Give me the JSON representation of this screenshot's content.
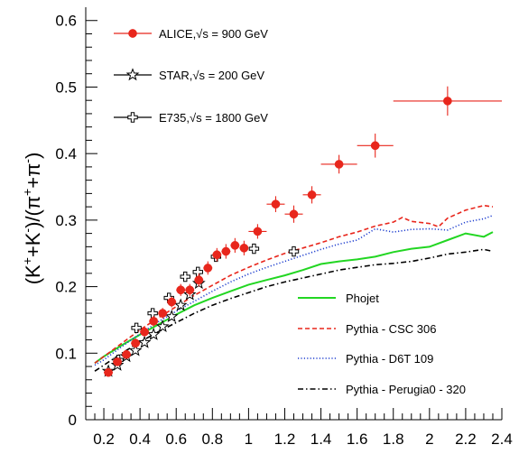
{
  "chart_data": {
    "type": "scatter",
    "title": "",
    "xlabel": "",
    "ylabel_parts": [
      "(K",
      "+",
      "+K",
      "-",
      ")/(π",
      "+",
      "+π",
      "-",
      ")"
    ],
    "xlim": [
      0.1,
      2.4
    ],
    "ylim": [
      0,
      0.62
    ],
    "x_ticks": [
      0.2,
      0.4,
      0.6,
      0.8,
      1,
      1.2,
      1.4,
      1.6,
      1.8,
      2,
      2.2,
      2.4
    ],
    "x_tick_labels": [
      "0.2",
      "0.4",
      "0.6",
      "0.8",
      "1",
      "1.2",
      "1.4",
      "1.6",
      "1.8",
      "2",
      "2.2",
      "2.4"
    ],
    "y_ticks": [
      0,
      0.1,
      0.2,
      0.3,
      0.4,
      0.5,
      0.6
    ],
    "y_tick_labels": [
      "0",
      "0.1",
      "0.2",
      "0.3",
      "0.4",
      "0.5",
      "0.6"
    ],
    "legend_placement": "top-left",
    "grid": false,
    "series": [
      {
        "name": "ALICE,√s = 900 GeV",
        "marker": "filled-circle",
        "color": "#e8261c",
        "points": [
          {
            "x": 0.225,
            "y": 0.071,
            "xerr": 0.025,
            "yerr": 0.006
          },
          {
            "x": 0.275,
            "y": 0.087,
            "xerr": 0.025,
            "yerr": 0.006
          },
          {
            "x": 0.325,
            "y": 0.098,
            "xerr": 0.025,
            "yerr": 0.006
          },
          {
            "x": 0.375,
            "y": 0.115,
            "xerr": 0.025,
            "yerr": 0.007
          },
          {
            "x": 0.425,
            "y": 0.132,
            "xerr": 0.025,
            "yerr": 0.007
          },
          {
            "x": 0.475,
            "y": 0.148,
            "xerr": 0.025,
            "yerr": 0.008
          },
          {
            "x": 0.525,
            "y": 0.16,
            "xerr": 0.025,
            "yerr": 0.008
          },
          {
            "x": 0.575,
            "y": 0.177,
            "xerr": 0.025,
            "yerr": 0.008
          },
          {
            "x": 0.625,
            "y": 0.195,
            "xerr": 0.025,
            "yerr": 0.009
          },
          {
            "x": 0.675,
            "y": 0.195,
            "xerr": 0.025,
            "yerr": 0.009
          },
          {
            "x": 0.725,
            "y": 0.21,
            "xerr": 0.025,
            "yerr": 0.01
          },
          {
            "x": 0.775,
            "y": 0.228,
            "xerr": 0.025,
            "yerr": 0.01
          },
          {
            "x": 0.825,
            "y": 0.248,
            "xerr": 0.025,
            "yerr": 0.01
          },
          {
            "x": 0.875,
            "y": 0.253,
            "xerr": 0.025,
            "yerr": 0.011
          },
          {
            "x": 0.925,
            "y": 0.262,
            "xerr": 0.025,
            "yerr": 0.011
          },
          {
            "x": 0.975,
            "y": 0.258,
            "xerr": 0.025,
            "yerr": 0.011
          },
          {
            "x": 1.05,
            "y": 0.283,
            "xerr": 0.05,
            "yerr": 0.011
          },
          {
            "x": 1.15,
            "y": 0.324,
            "xerr": 0.05,
            "yerr": 0.012
          },
          {
            "x": 1.25,
            "y": 0.309,
            "xerr": 0.05,
            "yerr": 0.013
          },
          {
            "x": 1.35,
            "y": 0.338,
            "xerr": 0.05,
            "yerr": 0.013
          },
          {
            "x": 1.5,
            "y": 0.384,
            "xerr": 0.1,
            "yerr": 0.014
          },
          {
            "x": 1.7,
            "y": 0.412,
            "xerr": 0.1,
            "yerr": 0.018
          },
          {
            "x": 2.1,
            "y": 0.479,
            "xerr": 0.3,
            "yerr": 0.022
          }
        ]
      },
      {
        "name": "STAR,√s = 200 GeV",
        "marker": "open-star",
        "color": "#000000",
        "points": [
          {
            "x": 0.225,
            "y": 0.073
          },
          {
            "x": 0.275,
            "y": 0.082
          },
          {
            "x": 0.325,
            "y": 0.095
          },
          {
            "x": 0.375,
            "y": 0.104
          },
          {
            "x": 0.425,
            "y": 0.116
          },
          {
            "x": 0.475,
            "y": 0.128
          },
          {
            "x": 0.525,
            "y": 0.14
          },
          {
            "x": 0.575,
            "y": 0.155
          },
          {
            "x": 0.625,
            "y": 0.172
          },
          {
            "x": 0.675,
            "y": 0.188
          },
          {
            "x": 0.725,
            "y": 0.205
          }
        ]
      },
      {
        "name": "E735,√s = 1800 GeV",
        "marker": "open-cross",
        "color": "#000000",
        "points": [
          {
            "x": 0.28,
            "y": 0.09
          },
          {
            "x": 0.38,
            "y": 0.138
          },
          {
            "x": 0.47,
            "y": 0.16
          },
          {
            "x": 0.56,
            "y": 0.183
          },
          {
            "x": 0.65,
            "y": 0.215
          },
          {
            "x": 0.72,
            "y": 0.222
          },
          {
            "x": 0.82,
            "y": 0.245
          },
          {
            "x": 1.03,
            "y": 0.257
          },
          {
            "x": 1.25,
            "y": 0.253
          }
        ]
      },
      {
        "name": "Phojet",
        "style": "solid",
        "color": "#22d622",
        "x": [
          0.15,
          0.2,
          0.3,
          0.4,
          0.5,
          0.6,
          0.7,
          0.8,
          0.9,
          1.0,
          1.1,
          1.2,
          1.3,
          1.4,
          1.5,
          1.6,
          1.7,
          1.8,
          1.9,
          2.0,
          2.1,
          2.2,
          2.3,
          2.35
        ],
        "y": [
          0.085,
          0.095,
          0.112,
          0.128,
          0.143,
          0.158,
          0.172,
          0.183,
          0.193,
          0.203,
          0.21,
          0.217,
          0.225,
          0.234,
          0.238,
          0.241,
          0.245,
          0.252,
          0.257,
          0.26,
          0.27,
          0.28,
          0.275,
          0.282
        ]
      },
      {
        "name": "Pythia - CSC 306",
        "style": "dashed",
        "color": "#e8261c",
        "x": [
          0.15,
          0.2,
          0.3,
          0.4,
          0.5,
          0.6,
          0.7,
          0.8,
          0.9,
          1.0,
          1.1,
          1.2,
          1.3,
          1.4,
          1.5,
          1.6,
          1.7,
          1.8,
          1.85,
          1.9,
          2.0,
          2.05,
          2.1,
          2.2,
          2.3,
          2.35
        ],
        "y": [
          0.085,
          0.095,
          0.115,
          0.135,
          0.153,
          0.17,
          0.187,
          0.202,
          0.217,
          0.229,
          0.24,
          0.25,
          0.258,
          0.266,
          0.275,
          0.282,
          0.291,
          0.297,
          0.304,
          0.298,
          0.295,
          0.29,
          0.303,
          0.315,
          0.322,
          0.32
        ]
      },
      {
        "name": "Pythia - D6T 109",
        "style": "dotted",
        "color": "#1f3fcf",
        "x": [
          0.15,
          0.2,
          0.3,
          0.4,
          0.5,
          0.6,
          0.7,
          0.8,
          0.9,
          1.0,
          1.1,
          1.2,
          1.3,
          1.4,
          1.5,
          1.6,
          1.7,
          1.8,
          1.9,
          2.0,
          2.1,
          2.2,
          2.3,
          2.35
        ],
        "y": [
          0.082,
          0.09,
          0.11,
          0.129,
          0.147,
          0.163,
          0.178,
          0.193,
          0.207,
          0.219,
          0.229,
          0.238,
          0.247,
          0.256,
          0.264,
          0.27,
          0.287,
          0.282,
          0.286,
          0.287,
          0.285,
          0.297,
          0.302,
          0.307
        ]
      },
      {
        "name": "Pythia - Perugia0 - 320",
        "style": "dash-dot",
        "color": "#000000",
        "x": [
          0.15,
          0.2,
          0.3,
          0.4,
          0.5,
          0.6,
          0.7,
          0.8,
          0.9,
          1.0,
          1.1,
          1.2,
          1.3,
          1.4,
          1.5,
          1.6,
          1.7,
          1.8,
          1.9,
          2.0,
          2.1,
          2.2,
          2.3,
          2.35
        ],
        "y": [
          0.073,
          0.082,
          0.1,
          0.117,
          0.132,
          0.146,
          0.16,
          0.172,
          0.182,
          0.191,
          0.2,
          0.207,
          0.213,
          0.219,
          0.225,
          0.229,
          0.233,
          0.235,
          0.238,
          0.243,
          0.249,
          0.252,
          0.256,
          0.253
        ]
      }
    ]
  }
}
